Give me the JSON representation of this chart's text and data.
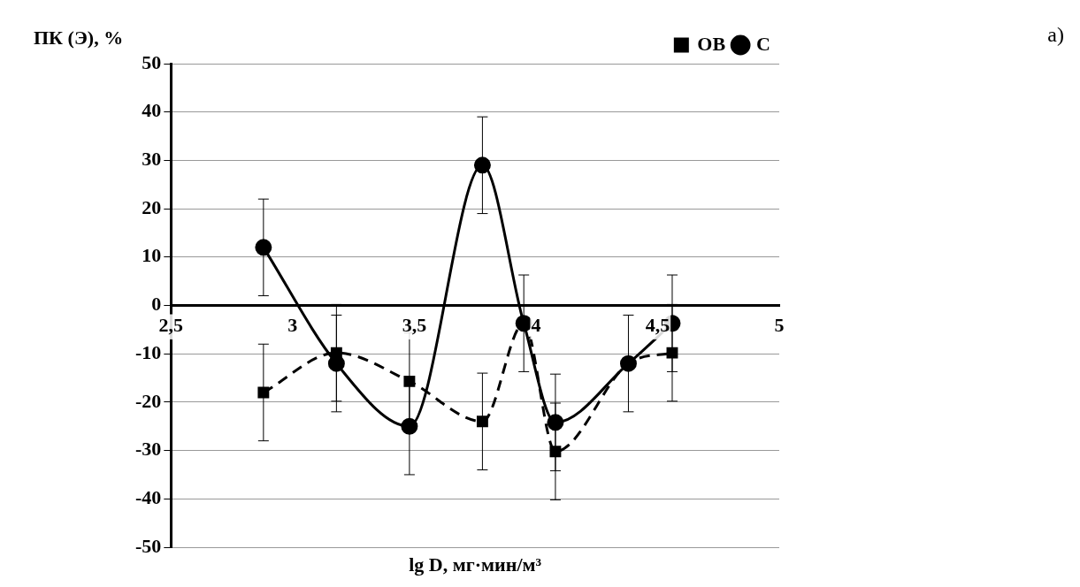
{
  "chart_data": {
    "type": "line",
    "ylabel": "ПК (Э), %",
    "xlabel": "lg D, мг·мин/м³",
    "annotations": [
      "а)"
    ],
    "xlim": [
      2.5,
      5
    ],
    "xticks": [
      {
        "value": 2.5,
        "label": "2,5"
      },
      3,
      {
        "value": 3.5,
        "label": "3,5"
      },
      4,
      {
        "value": 4.5,
        "label": "4,5"
      },
      5
    ],
    "ylim": [
      -50,
      50
    ],
    "yticks": [
      -50,
      -40,
      -30,
      -20,
      -10,
      0,
      10,
      20,
      30,
      40,
      50
    ],
    "grid": "y",
    "legend": "top right",
    "series": [
      {
        "name": "ОВ",
        "color": "#000000",
        "marker": "square",
        "line_style": "dashed",
        "x": [
          2.88,
          3.18,
          3.48,
          3.78,
          3.95,
          4.08,
          4.38,
          4.56
        ],
        "values": [
          -18,
          -9.8,
          -15.7,
          -24,
          -3.7,
          -30.2,
          -12,
          -9.8
        ],
        "errors": [
          10,
          10,
          10,
          10,
          null,
          10,
          null,
          10
        ]
      },
      {
        "name": "С",
        "color": "#000000",
        "marker": "circle",
        "line_style": "solid",
        "x": [
          2.88,
          3.18,
          3.48,
          3.78,
          3.95,
          4.08,
          4.38,
          4.56
        ],
        "values": [
          12,
          -12,
          -25,
          29,
          -3.7,
          -24.2,
          -12,
          -3.7
        ],
        "errors": [
          10,
          10,
          10,
          10,
          10,
          10,
          10,
          10
        ]
      }
    ]
  }
}
